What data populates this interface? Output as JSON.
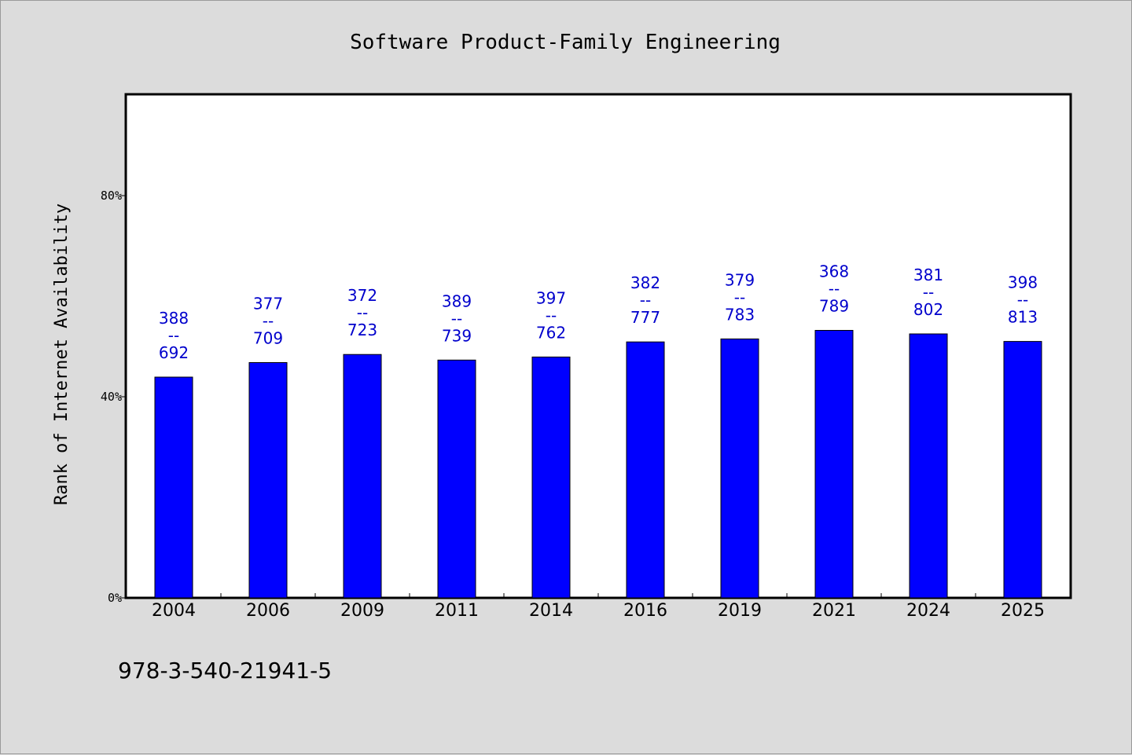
{
  "chart_data": {
    "type": "bar",
    "title": "Software Product-Family Engineering",
    "xlabel": "",
    "ylabel": "Rank of Internet Availability",
    "ylim": [
      0,
      100
    ],
    "yticks": [
      0,
      40,
      80
    ],
    "ytick_labels": [
      "0%",
      "40%",
      "80%"
    ],
    "categories": [
      "2004",
      "2006",
      "2009",
      "2011",
      "2014",
      "2016",
      "2019",
      "2021",
      "2024",
      "2025"
    ],
    "values": [
      43.9,
      46.8,
      48.4,
      47.3,
      47.9,
      50.9,
      51.5,
      53.2,
      52.5,
      51.0
    ],
    "data_labels": [
      [
        "388",
        "--",
        "692"
      ],
      [
        "377",
        "--",
        "709"
      ],
      [
        "372",
        "--",
        "723"
      ],
      [
        "389",
        "--",
        "739"
      ],
      [
        "397",
        "--",
        "762"
      ],
      [
        "382",
        "--",
        "777"
      ],
      [
        "379",
        "--",
        "783"
      ],
      [
        "368",
        "--",
        "789"
      ],
      [
        "381",
        "--",
        "802"
      ],
      [
        "398",
        "--",
        "813"
      ]
    ],
    "bar_color": "#0000ff",
    "label_color": "#0000cc",
    "grid": false
  },
  "footer": {
    "isbn": "978-3-540-21941-5"
  }
}
